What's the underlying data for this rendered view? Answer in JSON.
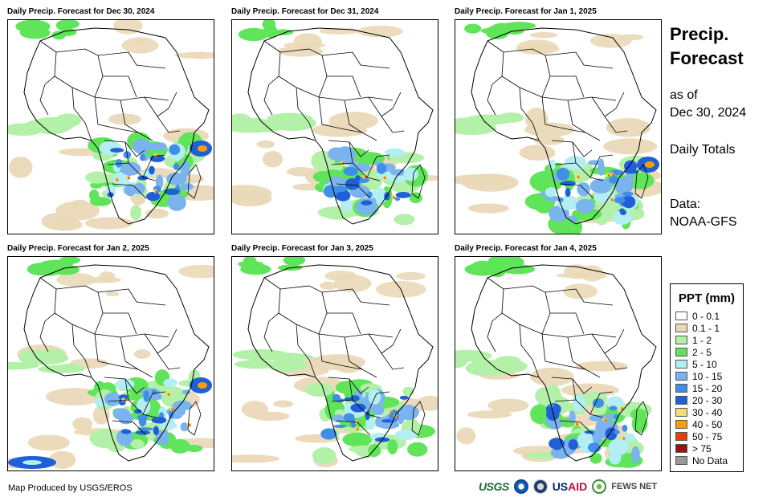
{
  "panels": [
    {
      "title": "Daily Precip. Forecast for Dec 30, 2024",
      "variant": 0
    },
    {
      "title": "Daily Precip. Forecast for Dec 31, 2024",
      "variant": 1
    },
    {
      "title": "Daily Precip. Forecast for Jan 1, 2025",
      "variant": 2
    },
    {
      "title": "Daily Precip. Forecast for Jan 2, 2025",
      "variant": 3
    },
    {
      "title": "Daily Precip. Forecast for Jan 3, 2025",
      "variant": 4
    },
    {
      "title": "Daily Precip. Forecast for Jan 4, 2025",
      "variant": 5
    }
  ],
  "sidebar": {
    "title_line1": "Precip.",
    "title_line2": "Forecast",
    "as_of_line1": "as of",
    "as_of_line2": "Dec 30, 2024",
    "totals": "Daily Totals",
    "data_line1": "Data:",
    "data_line2": "NOAA-GFS"
  },
  "legend": {
    "title": "PPT (mm)",
    "items": [
      {
        "label": "0 - 0.1",
        "color": "#ffffff"
      },
      {
        "label": "0.1 - 1",
        "color": "#ead9b8"
      },
      {
        "label": "1 - 2",
        "color": "#b3f0a8"
      },
      {
        "label": "2 - 5",
        "color": "#5fe45a"
      },
      {
        "label": "5 - 10",
        "color": "#b2eef2"
      },
      {
        "label": "10 - 15",
        "color": "#7ab3ee"
      },
      {
        "label": "15 - 20",
        "color": "#3f8fe8"
      },
      {
        "label": "20 - 30",
        "color": "#1f5fd8"
      },
      {
        "label": "30 - 40",
        "color": "#f5dc78"
      },
      {
        "label": "40 - 50",
        "color": "#f5a000"
      },
      {
        "label": "50 - 75",
        "color": "#e84000"
      },
      {
        "label": "> 75",
        "color": "#a01010"
      },
      {
        "label": "No Data",
        "color": "#999999"
      }
    ]
  },
  "footer": {
    "credit": "Map Produced by USGS/EROS",
    "logo_usgs": "USGS",
    "logo_usaid_us": "US",
    "logo_usaid_aid": "AID",
    "logo_fews": "FEWS NET"
  }
}
